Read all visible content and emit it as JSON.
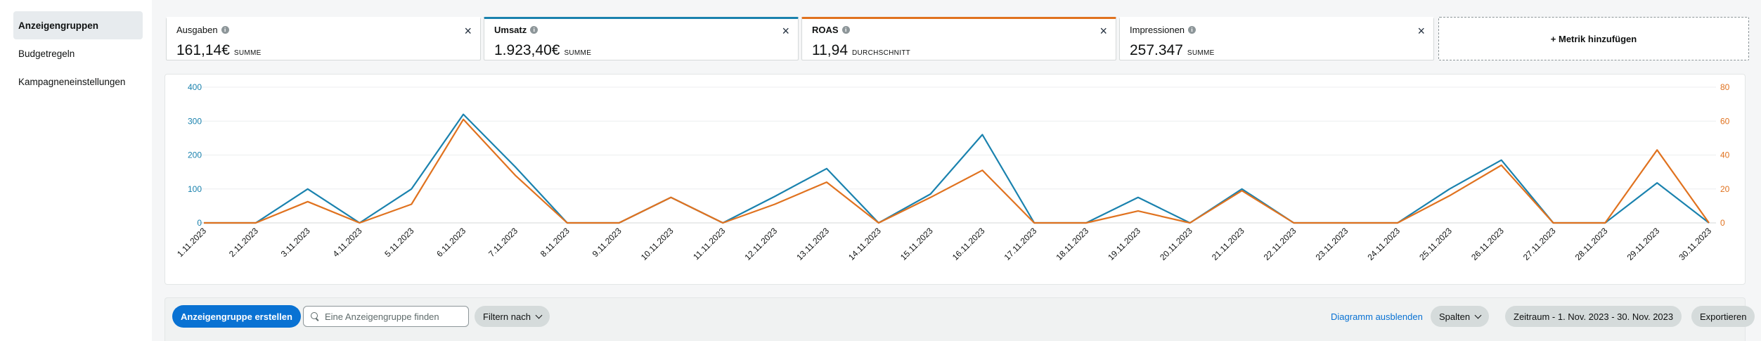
{
  "sidebar": {
    "items": [
      {
        "label": "Anzeigengruppen",
        "active": true
      },
      {
        "label": "Budgetregeln",
        "active": false
      },
      {
        "label": "Kampagneneinstellungen",
        "active": false
      }
    ]
  },
  "metrics": [
    {
      "name": "Ausgaben",
      "value": "161,14€",
      "aggregate": "SUMME",
      "accent": "",
      "selected": false
    },
    {
      "name": "Umsatz",
      "value": "1.923,40€",
      "aggregate": "SUMME",
      "accent": "#1a82ae",
      "selected": true
    },
    {
      "name": "ROAS",
      "value": "11,94",
      "aggregate": "DURCHSCHNITT",
      "accent": "#e0721f",
      "selected": true
    },
    {
      "name": "Impressionen",
      "value": "257.347",
      "aggregate": "SUMME",
      "accent": "",
      "selected": false
    }
  ],
  "add_metric_label": "+ Metrik hinzufügen",
  "info_glyph": "i",
  "close_glyph": "×",
  "chart_data": {
    "type": "line",
    "x": [
      "1.11.2023",
      "2.11.2023",
      "3.11.2023",
      "4.11.2023",
      "5.11.2023",
      "6.11.2023",
      "7.11.2023",
      "8.11.2023",
      "9.11.2023",
      "10.11.2023",
      "11.11.2023",
      "12.11.2023",
      "13.11.2023",
      "14.11.2023",
      "15.11.2023",
      "16.11.2023",
      "17.11.2023",
      "18.11.2023",
      "19.11.2023",
      "20.11.2023",
      "21.11.2023",
      "22.11.2023",
      "23.11.2023",
      "24.11.2023",
      "25.11.2023",
      "26.11.2023",
      "27.11.2023",
      "28.11.2023",
      "29.11.2023",
      "30.11.2023"
    ],
    "series": [
      {
        "name": "Umsatz",
        "axis": "left",
        "color": "#1a82ae",
        "values": [
          0,
          0,
          100,
          0,
          100,
          320,
          165,
          0,
          0,
          75,
          0,
          78,
          160,
          0,
          85,
          260,
          0,
          0,
          75,
          0,
          100,
          0,
          0,
          0,
          100,
          185,
          0,
          0,
          118,
          0
        ]
      },
      {
        "name": "ROAS",
        "axis": "right",
        "color": "#e0721f",
        "values": [
          0,
          0,
          12.5,
          0,
          11,
          61,
          28,
          0,
          0,
          15,
          0,
          11,
          24,
          0,
          15,
          31,
          0,
          0,
          7,
          0,
          19,
          0,
          0,
          0,
          16,
          34,
          0,
          0,
          43,
          0
        ]
      }
    ],
    "y_left": {
      "ticks": [
        0,
        100,
        200,
        300,
        400
      ],
      "range": [
        0,
        400
      ],
      "color": "#1a82ae"
    },
    "y_right": {
      "ticks": [
        0,
        20,
        40,
        60,
        80
      ],
      "range": [
        0,
        80
      ],
      "color": "#e0721f"
    },
    "grid": true
  },
  "toolbar": {
    "create_label": "Anzeigengruppe erstellen",
    "search_placeholder": "Eine Anzeigengruppe finden",
    "filter_label": "Filtern nach",
    "hide_chart_label": "Diagramm ausblenden",
    "columns_label": "Spalten",
    "date_range_label": "Zeitraum - 1. Nov. 2023 - 30. Nov. 2023",
    "export_label": "Exportieren"
  }
}
